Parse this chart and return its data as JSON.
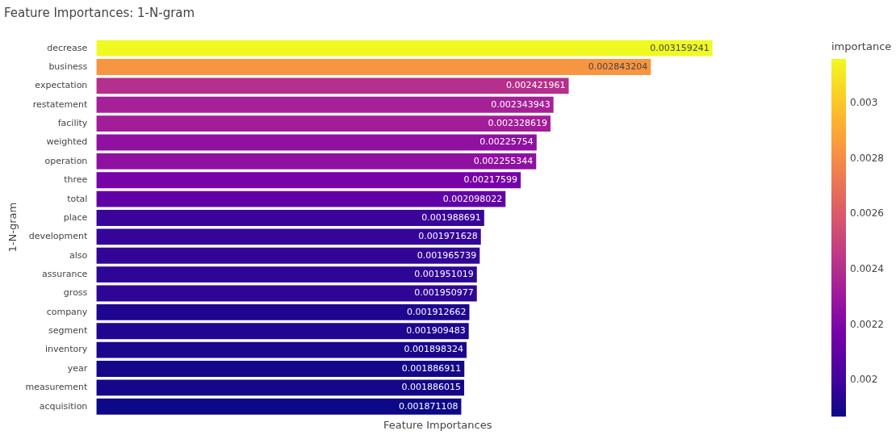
{
  "chart_data": {
    "type": "bar",
    "orientation": "horizontal",
    "title": "Feature Importances: 1-N-gram",
    "xlabel": "Feature Importances",
    "ylabel": "1-N-gram",
    "clabel": "importance",
    "categories": [
      "decrease",
      "business",
      "expectation",
      "restatement",
      "facility",
      "weighted",
      "operation",
      "three",
      "total",
      "place",
      "development",
      "also",
      "assurance",
      "gross",
      "company",
      "segment",
      "inventory",
      "year",
      "measurement",
      "acquisition"
    ],
    "values": [
      0.003159241,
      0.002843204,
      0.002421961,
      0.002343943,
      0.002328619,
      0.00225754,
      0.002255344,
      0.00217599,
      0.002098022,
      0.001988691,
      0.001971628,
      0.001965739,
      0.001951019,
      0.001950977,
      0.001912662,
      0.001909483,
      0.001898324,
      0.001886911,
      0.001886015,
      0.001871108
    ],
    "colors": [
      "#f0f921",
      "#f89540",
      "#b52f8c",
      "#a62098",
      "#a31d9a",
      "#9011a1",
      "#9011a1",
      "#7703a8",
      "#6100a7",
      "#3a049a",
      "#35059a",
      "#330597",
      "#2e0595",
      "#2e0595",
      "#1f0690",
      "#1f0690",
      "#1a078d",
      "#14078a",
      "#14078a",
      "#0d0887"
    ],
    "data_labels": true,
    "tick_labels": "y",
    "legend": false,
    "clim": [
      0.001871108,
      0.003159241
    ],
    "cticks": [
      0.002,
      0.0022,
      0.0024,
      0.0026,
      0.0028,
      0.003
    ]
  }
}
